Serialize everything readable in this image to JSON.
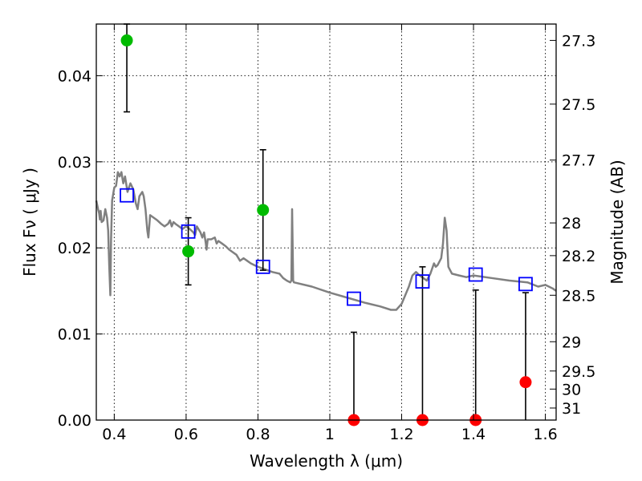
{
  "chart_data": {
    "type": "scatter",
    "xlabel": "Wavelength  λ (μm)",
    "ylabel": "Flux  Fν  ( μJy )",
    "ylabel_right": "Magnitude (AB)",
    "xlim": [
      0.35,
      1.63
    ],
    "ylim": [
      0.0,
      0.046
    ],
    "grid": true,
    "x_ticks": [
      0.4,
      0.6,
      0.8,
      1.0,
      1.2,
      1.4,
      1.6
    ],
    "x_tick_labels": [
      "0.4",
      "0.6",
      "0.8",
      "1",
      "1.2",
      "1.4",
      "1.6"
    ],
    "y_ticks": [
      0.0,
      0.01,
      0.02,
      0.03,
      0.04
    ],
    "y_tick_labels": [
      "0.00",
      "0.01",
      "0.02",
      "0.03",
      "0.04"
    ],
    "right_axis": {
      "ticks": [
        {
          "label": "27.3",
          "flux": 0.0441
        },
        {
          "label": "27.5",
          "flux": 0.0367
        },
        {
          "label": "27.7",
          "flux": 0.0302
        },
        {
          "label": "28",
          "flux": 0.0229
        },
        {
          "label": "28.2",
          "flux": 0.0191
        },
        {
          "label": "28.5",
          "flux": 0.0145
        },
        {
          "label": "29",
          "flux": 0.0091
        },
        {
          "label": "29.5",
          "flux": 0.0057
        },
        {
          "label": "30",
          "flux": 0.0036
        },
        {
          "label": "31",
          "flux": 0.0014
        }
      ]
    },
    "model_sed": {
      "color": "#808080",
      "points": [
        [
          0.35,
          0.0255
        ],
        [
          0.355,
          0.0245
        ],
        [
          0.358,
          0.024
        ],
        [
          0.36,
          0.0233
        ],
        [
          0.362,
          0.0243
        ],
        [
          0.365,
          0.023
        ],
        [
          0.37,
          0.0232
        ],
        [
          0.375,
          0.0245
        ],
        [
          0.38,
          0.0235
        ],
        [
          0.383,
          0.022
        ],
        [
          0.386,
          0.018
        ],
        [
          0.389,
          0.0145
        ],
        [
          0.391,
          0.021
        ],
        [
          0.394,
          0.0255
        ],
        [
          0.4,
          0.027
        ],
        [
          0.405,
          0.0272
        ],
        [
          0.41,
          0.0288
        ],
        [
          0.415,
          0.0283
        ],
        [
          0.42,
          0.0288
        ],
        [
          0.425,
          0.0275
        ],
        [
          0.43,
          0.0283
        ],
        [
          0.437,
          0.0265
        ],
        [
          0.445,
          0.0275
        ],
        [
          0.453,
          0.0268
        ],
        [
          0.46,
          0.0252
        ],
        [
          0.465,
          0.0245
        ],
        [
          0.47,
          0.026
        ],
        [
          0.478,
          0.0265
        ],
        [
          0.482,
          0.026
        ],
        [
          0.487,
          0.0245
        ],
        [
          0.492,
          0.022
        ],
        [
          0.495,
          0.0212
        ],
        [
          0.5,
          0.0238
        ],
        [
          0.51,
          0.0235
        ],
        [
          0.52,
          0.0232
        ],
        [
          0.53,
          0.0228
        ],
        [
          0.54,
          0.0225
        ],
        [
          0.55,
          0.0228
        ],
        [
          0.555,
          0.0232
        ],
        [
          0.56,
          0.0225
        ],
        [
          0.565,
          0.023
        ],
        [
          0.57,
          0.0228
        ],
        [
          0.58,
          0.0225
        ],
        [
          0.59,
          0.0222
        ],
        [
          0.6,
          0.0225
        ],
        [
          0.61,
          0.0222
        ],
        [
          0.62,
          0.0218
        ],
        [
          0.625,
          0.0215
        ],
        [
          0.63,
          0.0225
        ],
        [
          0.64,
          0.0218
        ],
        [
          0.645,
          0.0212
        ],
        [
          0.65,
          0.0218
        ],
        [
          0.655,
          0.0205
        ],
        [
          0.657,
          0.0198
        ],
        [
          0.66,
          0.021
        ],
        [
          0.67,
          0.021
        ],
        [
          0.68,
          0.0212
        ],
        [
          0.685,
          0.0205
        ],
        [
          0.69,
          0.0208
        ],
        [
          0.7,
          0.0205
        ],
        [
          0.71,
          0.0202
        ],
        [
          0.72,
          0.0198
        ],
        [
          0.73,
          0.0195
        ],
        [
          0.74,
          0.0192
        ],
        [
          0.75,
          0.0185
        ],
        [
          0.76,
          0.0188
        ],
        [
          0.77,
          0.0185
        ],
        [
          0.78,
          0.0182
        ],
        [
          0.79,
          0.018
        ],
        [
          0.8,
          0.0178
        ],
        [
          0.82,
          0.0175
        ],
        [
          0.84,
          0.0172
        ],
        [
          0.86,
          0.017
        ],
        [
          0.87,
          0.0165
        ],
        [
          0.88,
          0.0162
        ],
        [
          0.89,
          0.016
        ],
        [
          0.893,
          0.0162
        ],
        [
          0.895,
          0.0245
        ],
        [
          0.898,
          0.0162
        ],
        [
          0.9,
          0.016
        ],
        [
          0.95,
          0.0155
        ],
        [
          1.0,
          0.0148
        ],
        [
          1.05,
          0.0142
        ],
        [
          1.1,
          0.0136
        ],
        [
          1.14,
          0.0132
        ],
        [
          1.17,
          0.0128
        ],
        [
          1.185,
          0.0128
        ],
        [
          1.2,
          0.0135
        ],
        [
          1.22,
          0.0155
        ],
        [
          1.23,
          0.0168
        ],
        [
          1.24,
          0.0172
        ],
        [
          1.25,
          0.0168
        ],
        [
          1.26,
          0.0165
        ],
        [
          1.27,
          0.0162
        ],
        [
          1.28,
          0.017
        ],
        [
          1.29,
          0.0182
        ],
        [
          1.295,
          0.0178
        ],
        [
          1.3,
          0.018
        ],
        [
          1.31,
          0.0188
        ],
        [
          1.315,
          0.0205
        ],
        [
          1.32,
          0.0235
        ],
        [
          1.325,
          0.022
        ],
        [
          1.33,
          0.0178
        ],
        [
          1.34,
          0.017
        ],
        [
          1.36,
          0.0168
        ],
        [
          1.38,
          0.0166
        ],
        [
          1.4,
          0.0168
        ],
        [
          1.45,
          0.0165
        ],
        [
          1.5,
          0.0162
        ],
        [
          1.55,
          0.016
        ],
        [
          1.58,
          0.0155
        ],
        [
          1.6,
          0.0157
        ],
        [
          1.62,
          0.0153
        ],
        [
          1.63,
          0.015
        ]
      ]
    },
    "model_photometry": {
      "marker": "open-square",
      "color": "#0000ff",
      "points": [
        {
          "x": 0.435,
          "y": 0.0261
        },
        {
          "x": 0.606,
          "y": 0.0219
        },
        {
          "x": 0.814,
          "y": 0.0178
        },
        {
          "x": 1.067,
          "y": 0.0141
        },
        {
          "x": 1.258,
          "y": 0.0161
        },
        {
          "x": 1.406,
          "y": 0.0169
        },
        {
          "x": 1.545,
          "y": 0.0158
        }
      ]
    },
    "observed_detections": {
      "marker": "filled-circle",
      "color": "#00bb00",
      "points": [
        {
          "x": 0.435,
          "y": 0.0441,
          "yerr_low": 0.0358,
          "yerr_high": 0.046
        },
        {
          "x": 0.606,
          "y": 0.0196,
          "yerr_low": 0.0157,
          "yerr_high": 0.0235
        },
        {
          "x": 0.814,
          "y": 0.0244,
          "yerr_low": 0.0174,
          "yerr_high": 0.0314
        }
      ]
    },
    "observed_low_sn": {
      "marker": "filled-circle",
      "color": "#ff0000",
      "points": [
        {
          "x": 1.067,
          "y": 0.0,
          "yerr_low": 0.0,
          "yerr_high": 0.0102
        },
        {
          "x": 1.258,
          "y": 0.0,
          "yerr_low": 0.0,
          "yerr_high": 0.0178
        },
        {
          "x": 1.406,
          "y": 0.0,
          "yerr_low": 0.0,
          "yerr_high": 0.0151
        },
        {
          "x": 1.545,
          "y": 0.0044,
          "yerr_low": 0.0,
          "yerr_high": 0.0148
        }
      ]
    }
  }
}
